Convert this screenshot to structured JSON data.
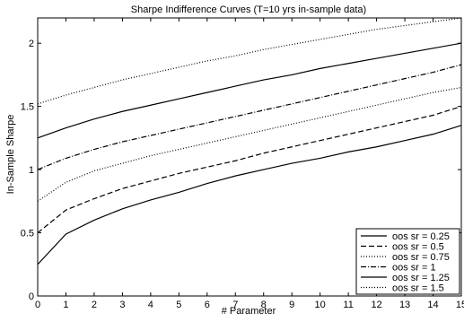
{
  "chart_data": {
    "type": "line",
    "title": "Sharpe Indifference Curves (T=10 yrs in-sample data)",
    "xlabel": "# Parameter",
    "ylabel": "In-Sample Sharpe",
    "xlim": [
      0,
      15
    ],
    "ylim": [
      0,
      2.2
    ],
    "x_ticks": [
      0,
      1,
      2,
      3,
      4,
      5,
      6,
      7,
      8,
      9,
      10,
      11,
      12,
      13,
      14,
      15
    ],
    "y_ticks": [
      0,
      0.5,
      1,
      1.5,
      2
    ],
    "y_tick_labels": [
      "0",
      "0.5",
      "1",
      "1.5",
      "2"
    ],
    "grid": false,
    "legend_position": "bottom-right",
    "x": [
      0,
      1,
      2,
      3,
      4,
      5,
      6,
      7,
      8,
      9,
      10,
      11,
      12,
      13,
      14,
      15
    ],
    "series": [
      {
        "name": "oos sr = 0.25",
        "dash": "",
        "values": [
          0.25,
          0.49,
          0.6,
          0.69,
          0.76,
          0.82,
          0.89,
          0.95,
          1.0,
          1.05,
          1.09,
          1.14,
          1.18,
          1.23,
          1.28,
          1.35
        ]
      },
      {
        "name": "oos sr = 0.5",
        "dash": "6,3",
        "values": [
          0.5,
          0.68,
          0.77,
          0.85,
          0.91,
          0.97,
          1.02,
          1.07,
          1.13,
          1.18,
          1.23,
          1.28,
          1.33,
          1.38,
          1.43,
          1.5
        ]
      },
      {
        "name": "oos sr = 0.75",
        "dash": "1,2",
        "values": [
          0.75,
          0.9,
          0.99,
          1.05,
          1.11,
          1.16,
          1.21,
          1.26,
          1.31,
          1.36,
          1.41,
          1.46,
          1.51,
          1.56,
          1.61,
          1.65
        ]
      },
      {
        "name": "oos sr = 1",
        "dash": "6,2,1,2",
        "values": [
          1.0,
          1.09,
          1.16,
          1.22,
          1.27,
          1.32,
          1.37,
          1.42,
          1.47,
          1.52,
          1.57,
          1.62,
          1.67,
          1.72,
          1.77,
          1.83
        ]
      },
      {
        "name": "oos sr = 1.25",
        "dash": "",
        "values": [
          1.25,
          1.33,
          1.4,
          1.46,
          1.51,
          1.56,
          1.61,
          1.66,
          1.71,
          1.75,
          1.8,
          1.84,
          1.88,
          1.92,
          1.96,
          2.0
        ]
      },
      {
        "name": "oos sr = 1.5",
        "dash": "1,2",
        "values": [
          1.52,
          1.59,
          1.65,
          1.71,
          1.76,
          1.81,
          1.86,
          1.9,
          1.95,
          1.99,
          2.03,
          2.07,
          2.11,
          2.14,
          2.17,
          2.2
        ]
      }
    ]
  }
}
